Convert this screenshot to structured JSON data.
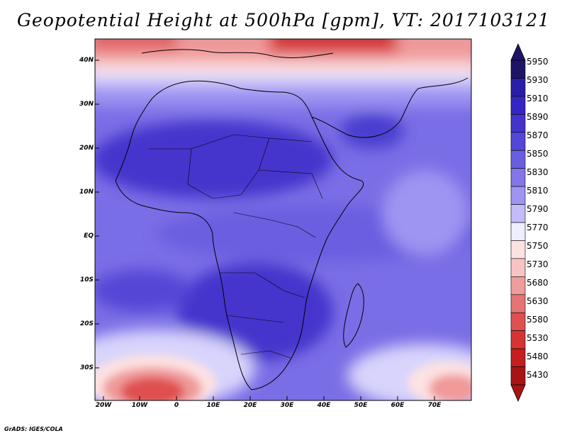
{
  "title": "Geopotential Height at 500hPa [gpm], VT: 2017103121",
  "credit": "GrADS: IGES/COLA",
  "lat_labels": [
    "40N",
    "30N",
    "20N",
    "10N",
    "EQ",
    "10S",
    "20S",
    "30S"
  ],
  "lon_labels": [
    "20W",
    "10W",
    "0",
    "10E",
    "20E",
    "30E",
    "40E",
    "50E",
    "60E",
    "70E"
  ],
  "legend": {
    "levels": [
      "5950",
      "5930",
      "5910",
      "5890",
      "5870",
      "5850",
      "5830",
      "5810",
      "5790",
      "5770",
      "5750",
      "5730",
      "5680",
      "5630",
      "5580",
      "5530",
      "5480",
      "5430"
    ],
    "colors": [
      "#1e1466",
      "#2a1ea8",
      "#3426c4",
      "#4434cc",
      "#5446d6",
      "#6a5ee0",
      "#8276ea",
      "#9e94f2",
      "#c2bcfa",
      "#eeeeff",
      "#fde2e2",
      "#f7c4c4",
      "#ef9c9c",
      "#e77474",
      "#df5050",
      "#d63434",
      "#c41e1e",
      "#a81414"
    ]
  }
}
